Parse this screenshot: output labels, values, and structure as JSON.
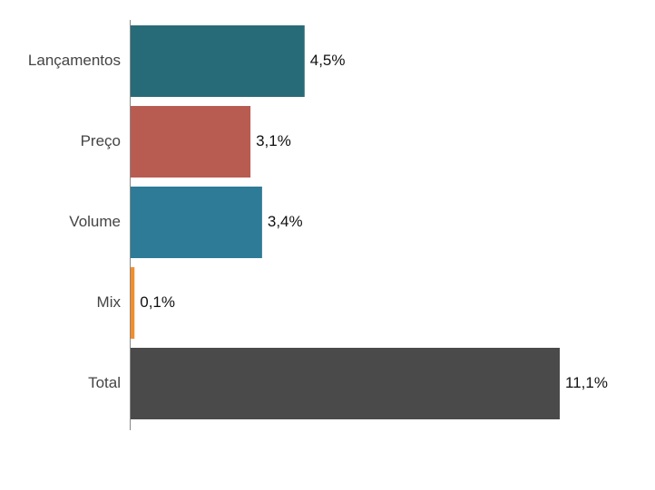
{
  "chart_data": {
    "type": "bar",
    "orientation": "horizontal",
    "categories": [
      "Lançamentos",
      "Preço",
      "Volume",
      "Mix",
      "Total"
    ],
    "values": [
      4.5,
      3.1,
      3.4,
      0.1,
      11.1
    ],
    "value_labels": [
      "4,5%",
      "3,1%",
      "3,4%",
      "0,1%",
      "11,1%"
    ],
    "colors": [
      "#286b78",
      "#b85c52",
      "#2e7b98",
      "#f28e2b",
      "#4a4a4a"
    ]
  }
}
